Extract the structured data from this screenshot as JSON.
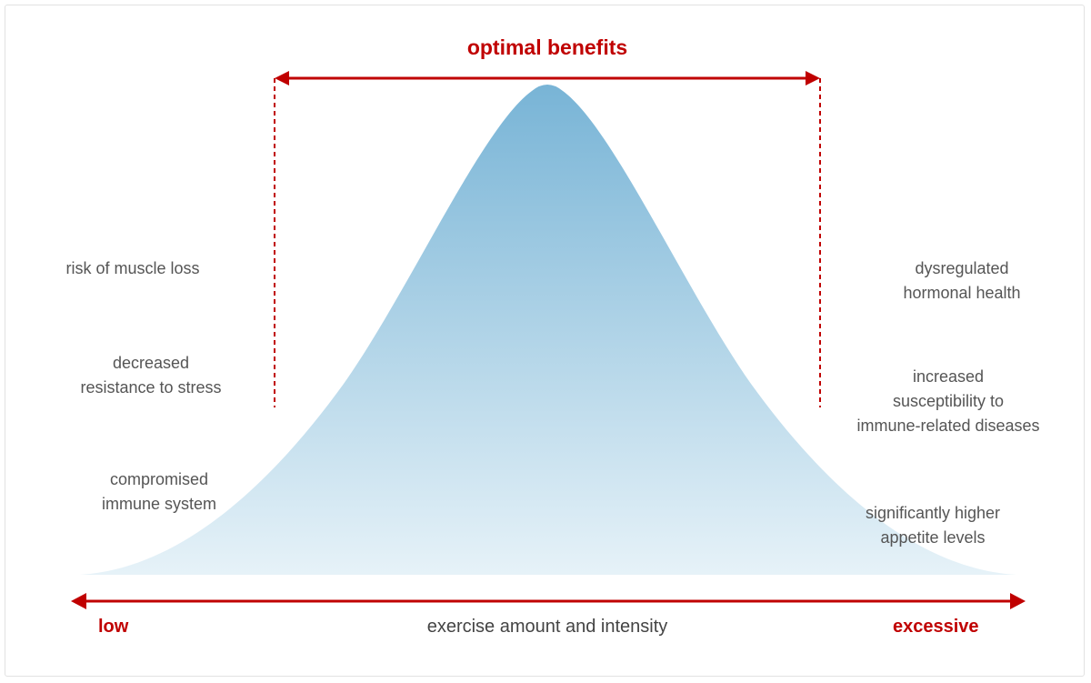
{
  "title": "optimal benefits",
  "axis": {
    "low": "low",
    "label": "exercise amount and intensity",
    "high": "excessive"
  },
  "left_effects": [
    "risk of muscle loss",
    "decreased\nresistance to stress",
    "compromised\nimmune system"
  ],
  "right_effects": [
    "dysregulated\nhormonal health",
    "increased\nsusceptibility to\nimmune-related diseases",
    "significantly higher\nappetite levels"
  ],
  "colors": {
    "accent": "#c00000",
    "curve_top": "#78b4d6",
    "curve_bottom": "#e6f2f8",
    "text": "#555555"
  }
}
